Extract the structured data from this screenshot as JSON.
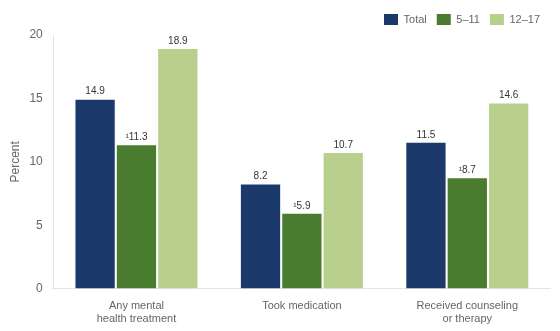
{
  "chart_data": {
    "type": "bar",
    "categories": [
      "Any mental\nhealth treatment",
      "Took medication",
      "Received counseling\nor therapy"
    ],
    "series": [
      {
        "name": "Total",
        "color": "#1b3a6b",
        "values": [
          14.9,
          8.2,
          11.5
        ]
      },
      {
        "name": "5–11",
        "color": "#4a7c2f",
        "values": [
          11.3,
          5.9,
          8.7
        ],
        "value_labels": [
          "¹11.3",
          "¹5.9",
          "¹8.7"
        ]
      },
      {
        "name": "12–17",
        "color": "#b8cf8e",
        "values": [
          18.9,
          10.7,
          14.6
        ]
      }
    ],
    "ylabel": "Percent",
    "ylim": [
      0,
      20
    ],
    "yticks": [
      0,
      5,
      10,
      15,
      20
    ],
    "grid": false,
    "legend": "upper right",
    "data_labels": true
  }
}
